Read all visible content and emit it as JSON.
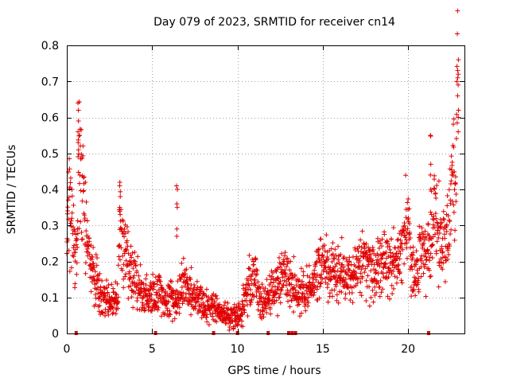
{
  "chart_data": {
    "type": "scatter",
    "title": "Day 079 of 2023, SRMTID for receiver cn14",
    "xlabel": "GPS time / hours",
    "ylabel": "SRMTID / TECUs",
    "xlim": [
      0,
      23.3
    ],
    "ylim": [
      0,
      0.8
    ],
    "xticks": [
      "0",
      "5",
      "10",
      "15",
      "20"
    ],
    "xtick_values": [
      0,
      5,
      10,
      15,
      20
    ],
    "yticks": [
      "0",
      "0.1",
      "0.2",
      "0.3",
      "0.4",
      "0.5",
      "0.6",
      "0.7",
      "0.8"
    ],
    "ytick_values": [
      0,
      0.1,
      0.2,
      0.3,
      0.4,
      0.5,
      0.6,
      0.7,
      0.8
    ],
    "grid": true,
    "marker": "+",
    "color": "#e00000",
    "profile_x": [
      0.0,
      0.1,
      0.2,
      0.3,
      0.5,
      0.6,
      0.7,
      0.8,
      0.9,
      1.0,
      1.1,
      1.2,
      1.3,
      1.4,
      1.5,
      1.7,
      1.9,
      2.2,
      2.5,
      2.8,
      3.0,
      3.1,
      3.3,
      3.5,
      3.8,
      4.2,
      4.6,
      5.0,
      5.4,
      5.8,
      6.2,
      6.5,
      6.8,
      7.2,
      7.6,
      8.0,
      8.5,
      9.0,
      9.5,
      9.9,
      10.2,
      10.5,
      10.8,
      11.0,
      11.2,
      11.5,
      11.8,
      12.2,
      12.6,
      13.0,
      13.4,
      13.8,
      14.2,
      14.6,
      15.0,
      15.4,
      15.8,
      16.2,
      16.6,
      17.0,
      17.4,
      17.8,
      18.2,
      18.6,
      19.0,
      19.4,
      19.8,
      20.0,
      20.2,
      20.4,
      20.7,
      21.0,
      21.2,
      21.4,
      21.6,
      21.8,
      22.0,
      22.2,
      22.4,
      22.6,
      22.8,
      22.9
    ],
    "profile_y": [
      0.24,
      0.34,
      0.37,
      0.34,
      0.2,
      0.22,
      0.48,
      0.42,
      0.38,
      0.34,
      0.3,
      0.24,
      0.22,
      0.2,
      0.18,
      0.14,
      0.12,
      0.1,
      0.09,
      0.08,
      0.1,
      0.32,
      0.24,
      0.21,
      0.17,
      0.12,
      0.1,
      0.1,
      0.11,
      0.1,
      0.09,
      0.09,
      0.14,
      0.12,
      0.1,
      0.08,
      0.07,
      0.06,
      0.05,
      0.04,
      0.06,
      0.11,
      0.15,
      0.17,
      0.12,
      0.08,
      0.1,
      0.12,
      0.15,
      0.15,
      0.12,
      0.11,
      0.12,
      0.17,
      0.19,
      0.18,
      0.16,
      0.17,
      0.16,
      0.17,
      0.2,
      0.18,
      0.18,
      0.2,
      0.18,
      0.2,
      0.27,
      0.3,
      0.17,
      0.15,
      0.24,
      0.22,
      0.2,
      0.32,
      0.34,
      0.28,
      0.24,
      0.26,
      0.3,
      0.42,
      0.47,
      0.62
    ],
    "spikes": [
      {
        "x": 0.68,
        "values": [
          0.64,
          0.62,
          0.59,
          0.56,
          0.53,
          0.51
        ]
      },
      {
        "x": 3.12,
        "values": [
          0.42,
          0.41,
          0.38,
          0.35,
          0.33
        ]
      },
      {
        "x": 6.45,
        "values": [
          0.41,
          0.4,
          0.36,
          0.35,
          0.29,
          0.27
        ]
      },
      {
        "x": 21.3,
        "values": [
          0.55,
          0.548,
          0.47,
          0.44,
          0.4
        ]
      },
      {
        "x": 22.93,
        "values": [
          0.76,
          0.73,
          0.72,
          0.71,
          0.69,
          0.66,
          0.62,
          0.6,
          0.56
        ]
      }
    ],
    "zero_markers": [
      0.55,
      5.2,
      8.6,
      10.0,
      11.8,
      13.0,
      13.2,
      13.4,
      21.2
    ]
  }
}
